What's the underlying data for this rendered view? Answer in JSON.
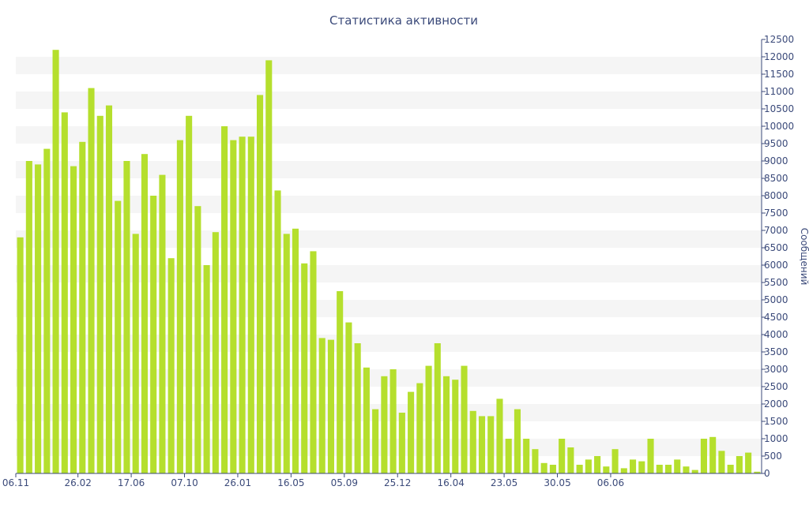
{
  "chart_data": {
    "type": "bar",
    "title": "Статистика активности",
    "ylabel": "Сообщений",
    "xlabel": "",
    "ylim": [
      0,
      12500
    ],
    "yticks": [
      0,
      500,
      1000,
      1500,
      2000,
      2500,
      3000,
      3500,
      4000,
      4500,
      5000,
      5500,
      6000,
      6500,
      7000,
      7500,
      8000,
      8500,
      9000,
      9500,
      10000,
      10500,
      11000,
      11500,
      12000,
      12500
    ],
    "x_tick_labels": [
      {
        "label": "06.11",
        "index": 0
      },
      {
        "label": "26.02",
        "index": 6.5
      },
      {
        "label": "17.06",
        "index": 12.5
      },
      {
        "label": "07.10",
        "index": 18.5
      },
      {
        "label": "26.01",
        "index": 24.5
      },
      {
        "label": "16.05",
        "index": 30.5
      },
      {
        "label": "05.09",
        "index": 36.5
      },
      {
        "label": "25.12",
        "index": 42.5
      },
      {
        "label": "16.04",
        "index": 48.5
      },
      {
        "label": "23.05",
        "index": 54.5
      },
      {
        "label": "30.05",
        "index": 60.5
      },
      {
        "label": "06.06",
        "index": 66.5
      }
    ],
    "values": [
      6800,
      9000,
      8900,
      9350,
      12200,
      10400,
      8850,
      9550,
      11100,
      10300,
      10600,
      7850,
      9000,
      6900,
      9200,
      8000,
      8600,
      6200,
      9600,
      10300,
      7700,
      6000,
      6950,
      10000,
      9600,
      9700,
      9700,
      10900,
      11900,
      8150,
      6900,
      7050,
      6050,
      6400,
      3900,
      3850,
      5250,
      4350,
      3750,
      3050,
      1850,
      2800,
      3000,
      1750,
      2350,
      2600,
      3100,
      3750,
      2800,
      2700,
      3100,
      1800,
      1650,
      1650,
      2150,
      1000,
      1850,
      1000,
      700,
      300,
      250,
      1000,
      750,
      250,
      400,
      500,
      200,
      700,
      150,
      400,
      350,
      1000,
      250,
      250,
      400,
      200,
      100,
      1000,
      1050,
      650,
      250,
      500,
      600,
      50
    ],
    "grid": "horizontal-bands",
    "colors": {
      "bar": "#b5df2d",
      "band": "#f5f5f5",
      "text": "#3b4a7a",
      "axis": "#3b4a7a"
    }
  }
}
